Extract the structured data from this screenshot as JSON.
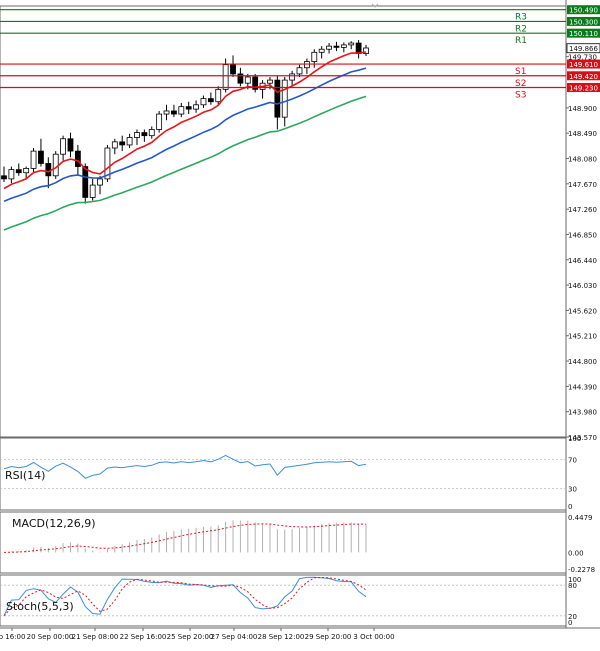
{
  "chart_data": {
    "type": "candlestick",
    "main": {
      "yticks": [
        "149.730",
        "148.900",
        "148.490",
        "148.080",
        "147.670",
        "147.260",
        "146.850",
        "146.440",
        "146.030",
        "145.620",
        "145.210",
        "144.800",
        "144.390",
        "143.980",
        "143.570"
      ],
      "ylim": [
        143.57,
        150.55
      ],
      "current_price": "149.866",
      "levels": [
        {
          "name": "R3",
          "value": "150.490",
          "kind": "resistance"
        },
        {
          "name": "R2",
          "value": "150.300",
          "kind": "resistance"
        },
        {
          "name": "R1",
          "value": "150.110",
          "kind": "resistance"
        },
        {
          "name": "S1",
          "value": "149.610",
          "kind": "support"
        },
        {
          "name": "S2",
          "value": "149.420",
          "kind": "support"
        },
        {
          "name": "S3",
          "value": "149.230",
          "kind": "support"
        }
      ],
      "candles": [
        [
          147.8,
          147.95,
          147.7,
          147.75
        ],
        [
          147.75,
          147.95,
          147.68,
          147.9
        ],
        [
          147.9,
          148.0,
          147.8,
          147.85
        ],
        [
          147.85,
          147.95,
          147.75,
          147.92
        ],
        [
          147.92,
          148.25,
          147.85,
          148.2
        ],
        [
          148.2,
          148.4,
          147.95,
          148.0
        ],
        [
          148.0,
          148.1,
          147.6,
          147.8
        ],
        [
          147.8,
          148.2,
          147.75,
          148.15
        ],
        [
          148.15,
          148.45,
          148.05,
          148.4
        ],
        [
          148.4,
          148.5,
          148.1,
          148.2
        ],
        [
          148.2,
          148.3,
          147.8,
          147.95
        ],
        [
          147.95,
          148.0,
          147.35,
          147.45
        ],
        [
          147.45,
          147.75,
          147.4,
          147.65
        ],
        [
          147.65,
          147.8,
          147.5,
          147.75
        ],
        [
          147.75,
          148.3,
          147.7,
          148.25
        ],
        [
          148.25,
          148.4,
          148.15,
          148.35
        ],
        [
          148.35,
          148.45,
          148.2,
          148.3
        ],
        [
          148.3,
          148.48,
          148.25,
          148.42
        ],
        [
          148.42,
          148.55,
          148.3,
          148.5
        ],
        [
          148.5,
          148.55,
          148.35,
          148.45
        ],
        [
          148.45,
          148.6,
          148.4,
          148.55
        ],
        [
          148.55,
          148.85,
          148.5,
          148.8
        ],
        [
          148.8,
          148.95,
          148.7,
          148.85
        ],
        [
          148.85,
          148.95,
          148.75,
          148.8
        ],
        [
          148.8,
          148.98,
          148.75,
          148.92
        ],
        [
          148.92,
          149.0,
          148.8,
          148.88
        ],
        [
          148.88,
          149.02,
          148.82,
          148.95
        ],
        [
          148.95,
          149.1,
          148.9,
          149.05
        ],
        [
          149.05,
          149.15,
          148.95,
          149.0
        ],
        [
          149.0,
          149.25,
          148.95,
          149.2
        ],
        [
          149.2,
          149.7,
          149.15,
          149.6
        ],
        [
          149.6,
          149.75,
          149.4,
          149.45
        ],
        [
          149.45,
          149.55,
          149.25,
          149.3
        ],
        [
          149.3,
          149.45,
          149.2,
          149.4
        ],
        [
          149.4,
          149.45,
          149.15,
          149.2
        ],
        [
          149.2,
          149.35,
          149.05,
          149.3
        ],
        [
          149.3,
          149.4,
          149.2,
          149.35
        ],
        [
          149.35,
          149.42,
          148.55,
          148.75
        ],
        [
          148.75,
          149.4,
          148.6,
          149.35
        ],
        [
          149.35,
          149.5,
          149.25,
          149.45
        ],
        [
          149.45,
          149.6,
          149.4,
          149.55
        ],
        [
          149.55,
          149.7,
          149.45,
          149.65
        ],
        [
          149.65,
          149.85,
          149.55,
          149.8
        ],
        [
          149.8,
          149.9,
          149.7,
          149.85
        ],
        [
          149.85,
          149.95,
          149.78,
          149.9
        ],
        [
          149.9,
          149.97,
          149.82,
          149.88
        ],
        [
          149.88,
          149.96,
          149.8,
          149.92
        ],
        [
          149.92,
          149.98,
          149.85,
          149.95
        ],
        [
          149.95,
          150.0,
          149.7,
          149.78
        ],
        [
          149.78,
          149.92,
          149.74,
          149.87
        ]
      ]
    },
    "rsi": {
      "label": "RSI(14)",
      "yticks": [
        "100",
        "70",
        "30",
        "0"
      ],
      "ylim": [
        0,
        100
      ]
    },
    "macd": {
      "label": "MACD(12,26,9)",
      "yticks": [
        "0.4479",
        "0.00",
        "-0.2278"
      ],
      "ylim": [
        -0.2278,
        0.4479
      ]
    },
    "stoch": {
      "label": "Stoch(5,5,3)",
      "yticks": [
        "100",
        "80",
        "20",
        "0"
      ],
      "ylim": [
        0,
        100
      ]
    },
    "x_labels": [
      "p 16:00",
      "20 Sep 00:00",
      "21 Sep 08:00",
      "22 Sep 16:00",
      "25 Sep 20:00",
      "27 Sep 04:00",
      "28 Sep 12:00",
      "29 Sep 20:00",
      "3 Oct 00:00"
    ]
  },
  "colors": {
    "bull_candle": "#ffffff",
    "bear_candle": "#000000",
    "ma_fast": "#e8151b",
    "ma_mid": "#2457c8",
    "ma_slow": "#2ba85b",
    "resistance": "#0a7a1a",
    "support": "#d40f17",
    "rsi": "#3b8fd8",
    "macd_hist": "#b0b0b0",
    "macd_signal": "#e8151b",
    "stoch_main": "#3b8fd8",
    "stoch_signal": "#e8151b"
  }
}
